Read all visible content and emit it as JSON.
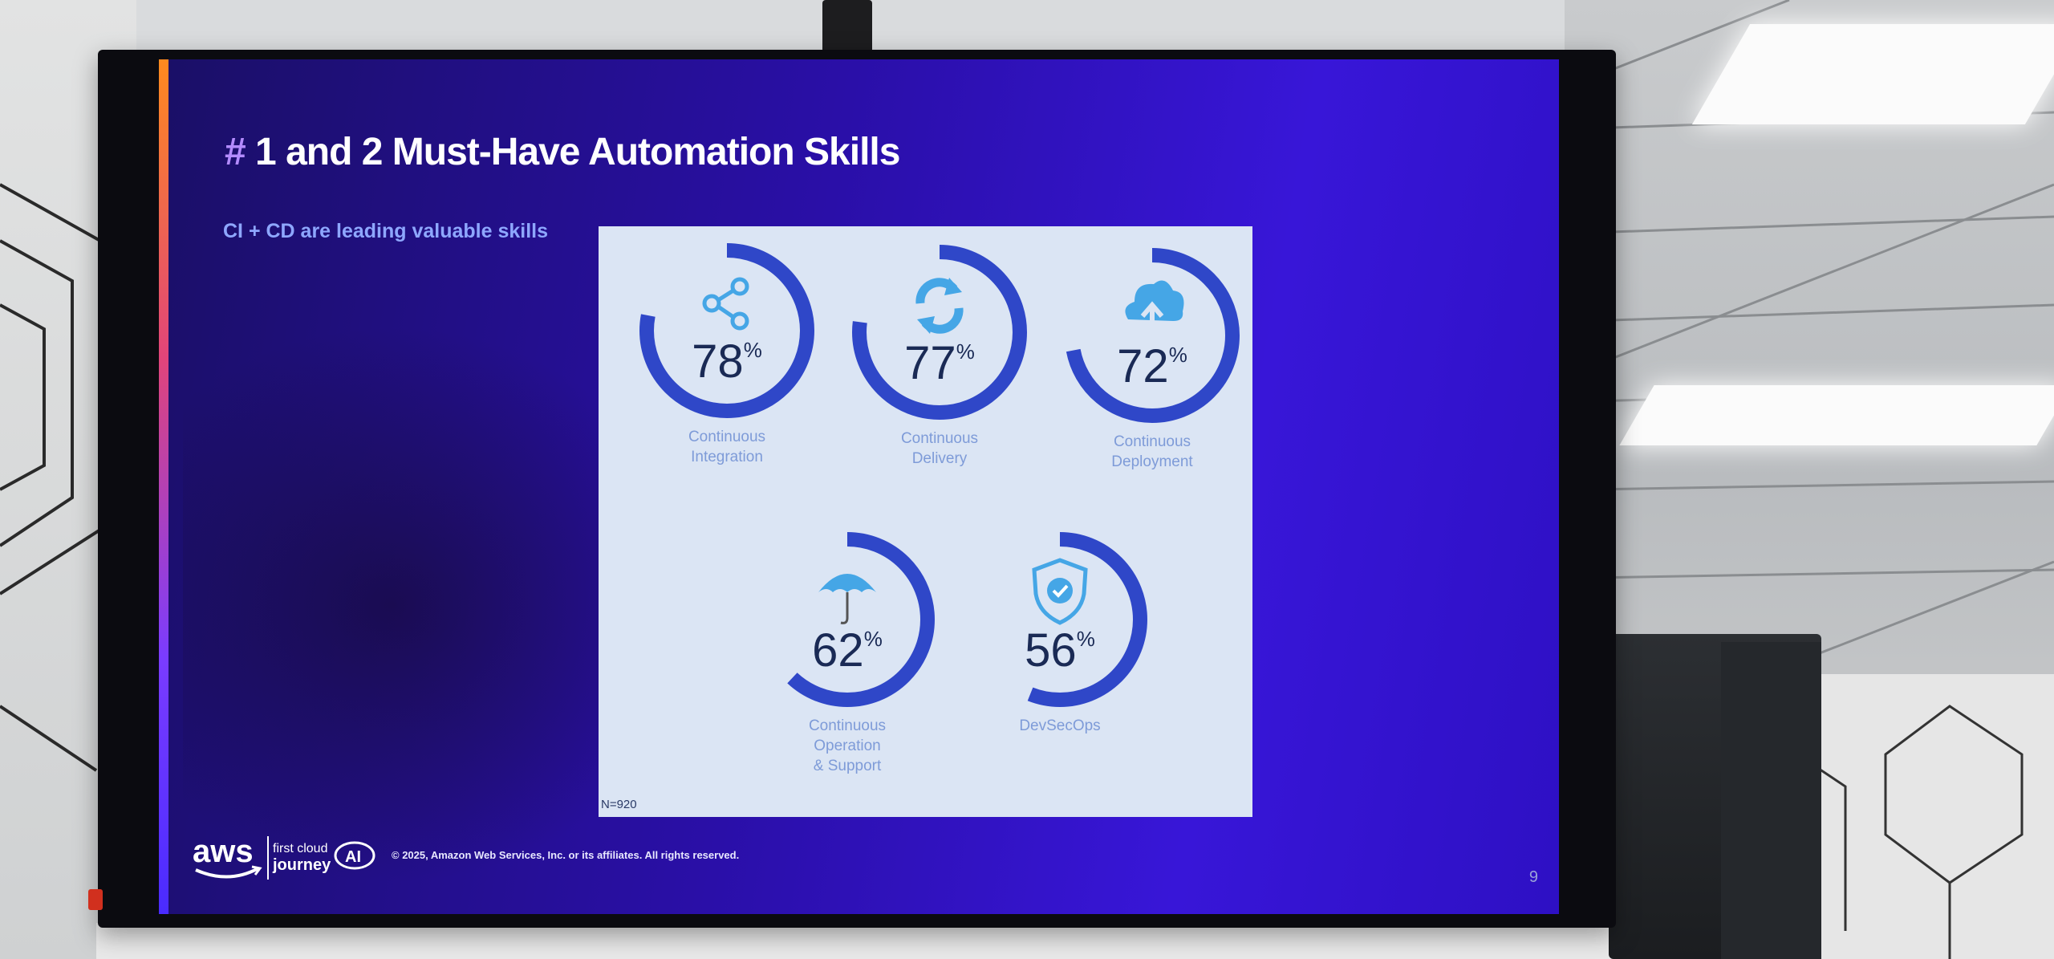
{
  "slide": {
    "title_hash": "#",
    "title_text": "1 and 2 Must-Have Automation Skills",
    "subtitle": "CI + CD are leading valuable skills",
    "footnote": "N=920",
    "copyright": "© 2025, Amazon Web Services, Inc. or its affiliates. All rights reserved.",
    "page_number": "9",
    "logo": {
      "aws": "aws",
      "journey_line1": "first cloud",
      "journey_line2": "journey",
      "ai": "AI"
    }
  },
  "colors": {
    "ring": "#2f47c8",
    "card": "#dbe5f4",
    "icon": "#45a6e6",
    "label": "#7e9bd8"
  },
  "chart_data": {
    "type": "radial",
    "unit": "%",
    "items": [
      {
        "label": "Continuous Integration",
        "value": 78,
        "icon": "share-icon"
      },
      {
        "label": "Continuous Delivery",
        "value": 77,
        "icon": "refresh-icon"
      },
      {
        "label": "Continuous Deployment",
        "value": 72,
        "icon": "cloud-upload-icon"
      },
      {
        "label": "Continuous Operation & Support",
        "value": 62,
        "icon": "umbrella-icon"
      },
      {
        "label": "DevSecOps",
        "value": 56,
        "icon": "shield-check-icon"
      }
    ]
  }
}
